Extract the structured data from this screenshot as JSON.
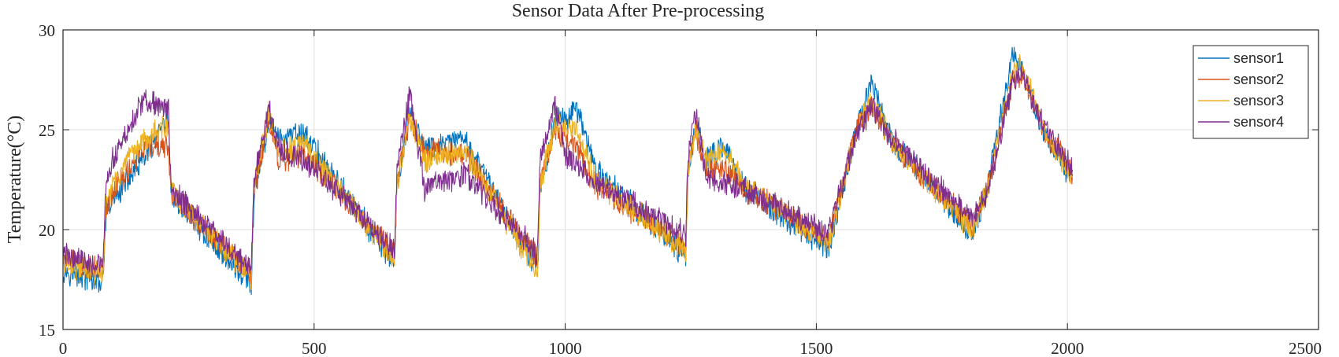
{
  "chart_data": {
    "type": "line",
    "title": "Sensor Data After Pre-processing",
    "xlabel": "",
    "ylabel": "Temperature(°C)",
    "xlim": [
      0,
      2500
    ],
    "ylim": [
      15,
      30
    ],
    "xticks": [
      0,
      500,
      1000,
      1500,
      2000,
      2500
    ],
    "yticks": [
      15,
      20,
      25,
      30
    ],
    "xtick_labels": [
      "0",
      "500",
      "1000",
      "1500",
      "2000",
      "2500"
    ],
    "ytick_labels": [
      "15",
      "20",
      "25",
      "30"
    ],
    "grid": true,
    "legend_position": "top-right",
    "series": [
      {
        "name": "sensor1",
        "color": "#0072BD",
        "x": [
          0,
          80,
          85,
          100,
          160,
          210,
          215,
          375,
          380,
          410,
          430,
          480,
          660,
          665,
          690,
          720,
          800,
          945,
          950,
          980,
          1000,
          1020,
          1060,
          1240,
          1245,
          1260,
          1280,
          1320,
          1360,
          1525,
          1580,
          1610,
          1650,
          1810,
          1840,
          1890,
          1910,
          1950,
          2010
        ],
        "y": [
          18.0,
          17.3,
          20.5,
          21.5,
          23.5,
          25.5,
          21.7,
          17.2,
          21.5,
          25.5,
          24.5,
          24.8,
          18.2,
          22.0,
          26.0,
          24.0,
          24.5,
          18.0,
          22.0,
          25.5,
          25.5,
          26.3,
          23.0,
          18.7,
          23.0,
          25.5,
          23.5,
          24.2,
          22.0,
          19.0,
          25.0,
          27.5,
          24.5,
          19.8,
          22.0,
          28.7,
          28.0,
          25.0,
          22.5
        ]
      },
      {
        "name": "sensor2",
        "color": "#D95319",
        "x": [
          0,
          80,
          85,
          100,
          160,
          210,
          215,
          375,
          380,
          410,
          430,
          480,
          660,
          665,
          690,
          720,
          800,
          945,
          950,
          980,
          1000,
          1020,
          1060,
          1240,
          1245,
          1260,
          1280,
          1320,
          1360,
          1525,
          1580,
          1610,
          1650,
          1810,
          1840,
          1890,
          1910,
          1950,
          2010
        ],
        "y": [
          18.6,
          18.0,
          21.0,
          22.0,
          24.0,
          24.2,
          21.8,
          17.8,
          22.0,
          25.5,
          23.5,
          23.8,
          18.8,
          22.5,
          25.5,
          24.0,
          23.8,
          18.5,
          22.5,
          25.0,
          24.5,
          24.3,
          22.2,
          19.2,
          23.2,
          25.0,
          23.0,
          23.0,
          22.0,
          19.5,
          25.0,
          26.2,
          24.3,
          20.2,
          22.0,
          27.5,
          27.8,
          25.2,
          22.8
        ]
      },
      {
        "name": "sensor3",
        "color": "#EDB120",
        "x": [
          0,
          80,
          85,
          100,
          160,
          210,
          215,
          375,
          380,
          410,
          430,
          480,
          660,
          665,
          690,
          720,
          800,
          945,
          950,
          980,
          1000,
          1020,
          1060,
          1240,
          1245,
          1260,
          1280,
          1320,
          1360,
          1525,
          1580,
          1610,
          1650,
          1810,
          1840,
          1890,
          1910,
          1950,
          2010
        ],
        "y": [
          18.4,
          17.7,
          21.2,
          22.3,
          24.5,
          25.3,
          21.9,
          17.6,
          22.2,
          25.8,
          23.8,
          24.3,
          18.5,
          22.3,
          25.8,
          23.5,
          24.0,
          17.8,
          22.3,
          25.3,
          25.0,
          25.1,
          22.5,
          19.0,
          23.0,
          25.2,
          23.5,
          24.0,
          22.2,
          19.3,
          25.0,
          26.5,
          24.4,
          20.0,
          22.0,
          27.8,
          28.3,
          25.1,
          22.6
        ]
      },
      {
        "name": "sensor4",
        "color": "#7E2F8E",
        "x": [
          0,
          80,
          85,
          100,
          160,
          210,
          215,
          375,
          380,
          410,
          430,
          480,
          660,
          665,
          690,
          720,
          800,
          945,
          950,
          980,
          1000,
          1020,
          1060,
          1240,
          1245,
          1260,
          1280,
          1320,
          1360,
          1525,
          1580,
          1610,
          1650,
          1810,
          1840,
          1890,
          1910,
          1950,
          2010
        ],
        "y": [
          18.8,
          18.2,
          22.0,
          23.5,
          26.5,
          26.0,
          22.0,
          18.0,
          22.5,
          26.0,
          24.0,
          23.5,
          19.0,
          23.0,
          26.8,
          22.0,
          22.8,
          18.8,
          23.5,
          26.3,
          23.8,
          23.3,
          22.3,
          19.8,
          23.8,
          26.0,
          22.5,
          22.3,
          22.0,
          19.8,
          24.8,
          26.2,
          24.6,
          20.5,
          21.8,
          27.3,
          27.7,
          25.4,
          23.0
        ]
      }
    ]
  }
}
